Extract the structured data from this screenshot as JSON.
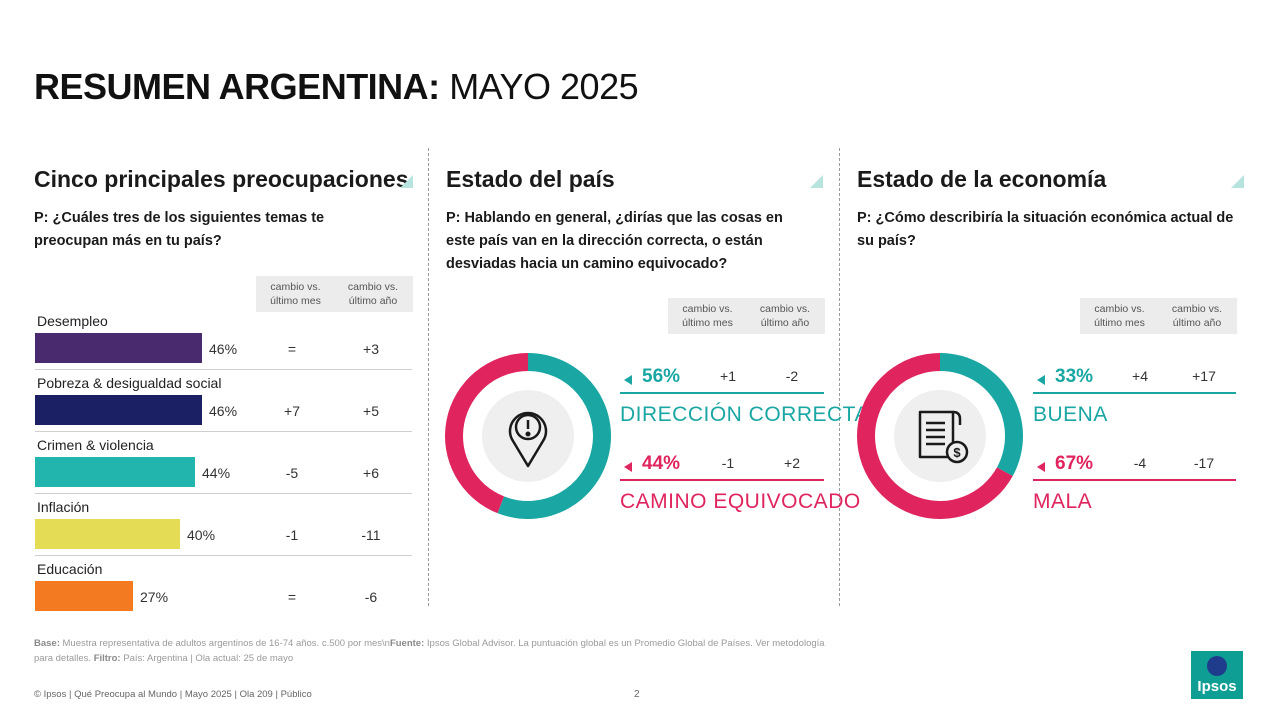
{
  "title": {
    "bold": "RESUMEN ARGENTINA:",
    "light": "MAYO 2025"
  },
  "change_headers": {
    "month": "cambio vs. último mes",
    "year": "cambio vs. último año"
  },
  "colors": {
    "teal": "#1aa7a4",
    "pink": "#e0245e",
    "purple": "#4a2a6e",
    "navy": "#1b1f63",
    "teal_bar": "#22b5ae",
    "yellow": "#e4dc55",
    "orange": "#f47a21"
  },
  "concerns": {
    "title": "Cinco principales preocupaciones",
    "question": "P: ¿Cuáles tres de los siguientes temas te preocupan más en tu país?",
    "chart_data": {
      "type": "bar",
      "categories": [
        "Desempleo",
        "Pobreza & desigualdad social",
        "Crimen & violencia",
        "Inflación",
        "Educación"
      ],
      "values": [
        46,
        46,
        44,
        40,
        27
      ],
      "value_labels": [
        "46%",
        "46%",
        "44%",
        "40%",
        "27%"
      ],
      "change_month": [
        "=",
        "+7",
        "-5",
        "-1",
        "="
      ],
      "change_year": [
        "+3",
        "+5",
        "+6",
        "-11",
        "-6"
      ],
      "bar_colors": [
        "#4a2a6e",
        "#1b1f63",
        "#22b5ae",
        "#e4dc55",
        "#f47a21"
      ],
      "xlim": [
        0,
        100
      ]
    }
  },
  "country": {
    "title": "Estado del país",
    "question": "P: Hablando en general, ¿dirías que las cosas en este país van en la dirección correcta, o están desviadas hacia un camino equivocado?",
    "icon": "warning-pin-icon",
    "chart_data": {
      "type": "pie",
      "labels": [
        "DIRECCIÓN CORRECTA",
        "CAMINO EQUIVOCADO"
      ],
      "values": [
        56,
        44
      ],
      "value_labels": [
        "56%",
        "44%"
      ],
      "change_month": [
        "+1",
        "-1"
      ],
      "change_year": [
        "-2",
        "+2"
      ],
      "colors": [
        "#1aa7a4",
        "#e0245e"
      ]
    }
  },
  "economy": {
    "title": "Estado de la economía",
    "question": "P: ¿Cómo describiría la situación económica actual de su país?",
    "icon": "invoice-dollar-icon",
    "chart_data": {
      "type": "pie",
      "labels": [
        "BUENA",
        "MALA"
      ],
      "values": [
        33,
        67
      ],
      "value_labels": [
        "33%",
        "67%"
      ],
      "change_month": [
        "+4",
        "-4"
      ],
      "change_year": [
        "+17",
        "-17"
      ],
      "colors": [
        "#1aa7a4",
        "#e0245e"
      ]
    }
  },
  "footnote": {
    "base_label": "Base:",
    "base_text": "Muestra representativa de adultos argentinos de 16-74 años. c.500 por mes\\n",
    "source_label": "Fuente:",
    "source_text": "Ipsos Global Advisor. La puntuación global es un Promedio Global de Países. Ver metodología para detalles.",
    "filter_label": "Filtro:",
    "filter_text": "País: Argentina | Ola actual: 25 de mayo"
  },
  "footer": {
    "text": "© Ipsos | Qué Preocupa al Mundo | Mayo 2025 | Ola 209 | Público",
    "page": "2",
    "logo": "Ipsos"
  }
}
